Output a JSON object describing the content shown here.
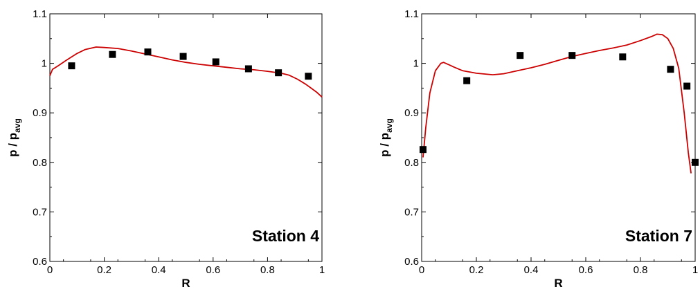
{
  "chart_data": [
    {
      "type": "line",
      "xlabel": "R",
      "ylabel": "p / p",
      "ylabel_subscript": "avg",
      "annotation": "Station 4",
      "xlim": [
        0,
        1
      ],
      "ylim": [
        0.6,
        1.1
      ],
      "x_ticks": [
        0,
        0.2,
        0.4,
        0.6,
        0.8,
        1
      ],
      "x_tick_labels": [
        "0",
        "0.2",
        "0.4",
        "0.6",
        "0.8",
        "1"
      ],
      "y_ticks": [
        0.6,
        0.7,
        0.8,
        0.9,
        1,
        1.1
      ],
      "y_tick_labels": [
        "0.6",
        "0.7",
        "0.8",
        "0.9",
        "1",
        "1.1"
      ],
      "grid": false,
      "colors": {
        "line": "#cc0000",
        "markers": "#000000"
      },
      "series": [
        {
          "type": "line",
          "x": [
            0,
            0.01,
            0.03,
            0.06,
            0.1,
            0.13,
            0.17,
            0.2,
            0.25,
            0.3,
            0.35,
            0.4,
            0.45,
            0.5,
            0.55,
            0.6,
            0.65,
            0.7,
            0.75,
            0.8,
            0.85,
            0.88,
            0.91,
            0.94,
            0.96,
            0.98,
            1.0
          ],
          "y": [
            0.975,
            0.988,
            0.995,
            1.006,
            1.02,
            1.028,
            1.033,
            1.032,
            1.03,
            1.025,
            1.019,
            1.013,
            1.007,
            1.002,
            0.998,
            0.995,
            0.992,
            0.989,
            0.987,
            0.984,
            0.98,
            0.976,
            0.968,
            0.958,
            0.95,
            0.942,
            0.932
          ]
        },
        {
          "type": "scatter",
          "marker": "square",
          "x": [
            0.08,
            0.23,
            0.36,
            0.49,
            0.61,
            0.73,
            0.84,
            0.95
          ],
          "y": [
            0.995,
            1.018,
            1.023,
            1.014,
            1.003,
            0.989,
            0.981,
            0.974
          ]
        }
      ]
    },
    {
      "type": "line",
      "xlabel": "R",
      "ylabel": "p / p",
      "ylabel_subscript": "avg",
      "annotation": "Station 7",
      "xlim": [
        0,
        1
      ],
      "ylim": [
        0.6,
        1.1
      ],
      "x_ticks": [
        0,
        0.2,
        0.4,
        0.6,
        0.8,
        1
      ],
      "x_tick_labels": [
        "0",
        "0.2",
        "0.4",
        "0.6",
        "0.8",
        "1"
      ],
      "y_ticks": [
        0.6,
        0.7,
        0.8,
        0.9,
        1,
        1.1
      ],
      "y_tick_labels": [
        "0.6",
        "0.7",
        "0.8",
        "0.9",
        "1",
        "1.1"
      ],
      "grid": false,
      "colors": {
        "line": "#cc0000",
        "markers": "#000000"
      },
      "series": [
        {
          "type": "line",
          "x": [
            0.005,
            0.015,
            0.03,
            0.05,
            0.07,
            0.08,
            0.1,
            0.12,
            0.15,
            0.2,
            0.26,
            0.3,
            0.35,
            0.4,
            0.45,
            0.5,
            0.55,
            0.6,
            0.65,
            0.7,
            0.75,
            0.8,
            0.84,
            0.86,
            0.88,
            0.9,
            0.92,
            0.94,
            0.96,
            0.975,
            0.985
          ],
          "y": [
            0.81,
            0.87,
            0.94,
            0.985,
            1.0,
            1.002,
            0.997,
            0.992,
            0.985,
            0.98,
            0.977,
            0.979,
            0.985,
            0.991,
            0.998,
            1.006,
            1.014,
            1.02,
            1.026,
            1.031,
            1.037,
            1.046,
            1.054,
            1.059,
            1.058,
            1.05,
            1.03,
            0.99,
            0.9,
            0.82,
            0.778
          ]
        },
        {
          "type": "scatter",
          "marker": "square",
          "x": [
            0.005,
            0.165,
            0.36,
            0.55,
            0.735,
            0.91,
            0.97,
            1.0
          ],
          "y": [
            0.826,
            0.965,
            1.016,
            1.016,
            1.013,
            0.988,
            0.954,
            0.8
          ]
        }
      ]
    }
  ]
}
